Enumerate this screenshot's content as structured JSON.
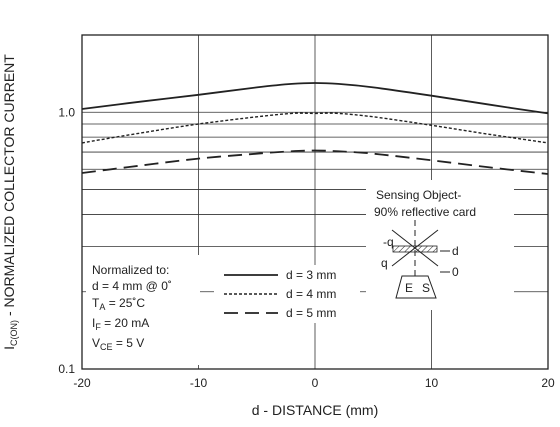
{
  "chart_data": {
    "type": "line",
    "xlabel": "d - DISTANCE (mm)",
    "ylabel_main": "I",
    "ylabel_sub": "C(ON)",
    "ylabel_rest": " - NORMALIZED COLLECTOR CURRENT",
    "xlim": [
      -20,
      20
    ],
    "ylim": [
      0.1,
      2.0
    ],
    "yscale": "log",
    "grid": true,
    "x_ticks": [
      -20,
      -10,
      0,
      10,
      20
    ],
    "x_tick_labels": [
      "-20",
      "-10",
      "0",
      "10",
      "20"
    ],
    "y_tick_labels": [
      {
        "value": 1.0,
        "label": "1.0"
      },
      {
        "value": 0.1,
        "label": "0.1"
      }
    ],
    "x": [
      -20,
      -15,
      -10,
      -5,
      -2,
      0,
      2,
      5,
      10,
      15,
      20
    ],
    "series": [
      {
        "name": "d = 3 mm",
        "style": "solid",
        "values": [
          1.03,
          1.1,
          1.17,
          1.25,
          1.29,
          1.3,
          1.29,
          1.25,
          1.16,
          1.07,
          0.99
        ]
      },
      {
        "name": "d = 4 mm",
        "style": "dotted",
        "values": [
          0.76,
          0.83,
          0.9,
          0.96,
          0.99,
          0.99,
          0.99,
          0.96,
          0.89,
          0.82,
          0.76
        ]
      },
      {
        "name": "d = 5 mm",
        "style": "dashed",
        "values": [
          0.58,
          0.62,
          0.66,
          0.69,
          0.705,
          0.71,
          0.705,
          0.69,
          0.65,
          0.61,
          0.575
        ]
      }
    ],
    "legend_placement": "bottom-center",
    "colors": {
      "line": "#222222",
      "grid": "#333333",
      "frame": "#222222"
    }
  },
  "notes": {
    "line1": "Normalized to:",
    "line2": "d = 4 mm @ 0˚",
    "ta_main": "T",
    "ta_sub": "A",
    "ta_rest": " = 25˚C",
    "if_main": "I",
    "if_sub": "F",
    "if_rest": " = 20 mA",
    "vce_main": "V",
    "vce_sub": "CE",
    "vce_rest": " = 5 V"
  },
  "inset": {
    "title1": "Sensing Object-",
    "title2": "90% reflective card",
    "label_neg_q": "-q",
    "label_q": "q",
    "label_d": "d",
    "label_zero": "0",
    "label_e": "E",
    "label_s": "S"
  }
}
